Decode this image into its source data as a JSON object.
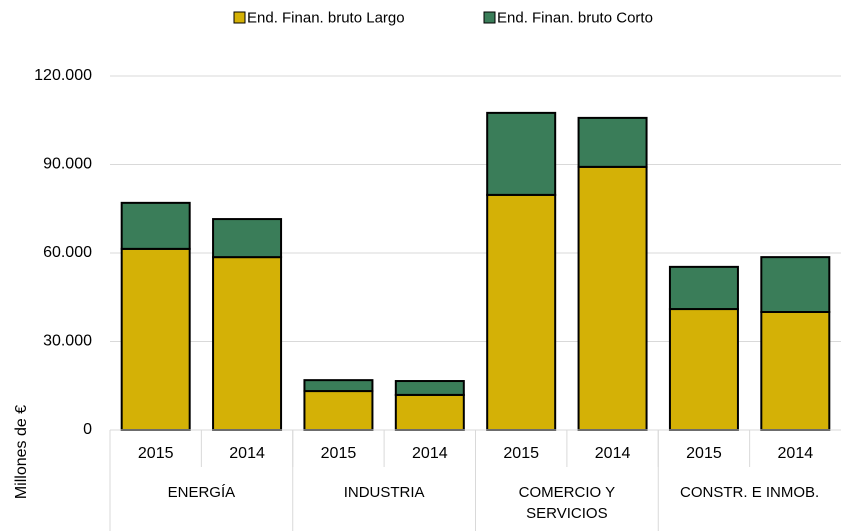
{
  "chart_data": {
    "type": "stacked_bar",
    "y_label": "Millones de €",
    "categories": [
      "2015",
      "2014",
      "2015",
      "2014",
      "2015",
      "2014",
      "2015",
      "2014"
    ],
    "groups": [
      {
        "label": "ENERGÍA",
        "size": 2
      },
      {
        "label": "INDUSTRIA",
        "size": 2
      },
      {
        "label": "COMERCIO Y SERVICIOS",
        "size": 2
      },
      {
        "label": "CONSTR. E INMOB.",
        "size": 2
      }
    ],
    "series": [
      {
        "name": "End. Finan. bruto Largo",
        "color": "#d4b106",
        "values": [
          61400,
          58600,
          13200,
          11900,
          79700,
          89200,
          41000,
          40000
        ]
      },
      {
        "name": "End. Finan. bruto  Corto",
        "color": "#3a7d59",
        "values": [
          15600,
          12900,
          3700,
          4700,
          27800,
          16600,
          14300,
          18600
        ]
      }
    ],
    "ylim": [
      0,
      120000
    ],
    "yticks": [
      0,
      {
        "value": 30000,
        "label": "30.000"
      },
      {
        "value": 60000,
        "label": "60.000"
      },
      {
        "value": 90000,
        "label": "90.000"
      },
      {
        "value": 120000,
        "label": "120.000"
      }
    ],
    "grid": true,
    "legend": "top"
  }
}
